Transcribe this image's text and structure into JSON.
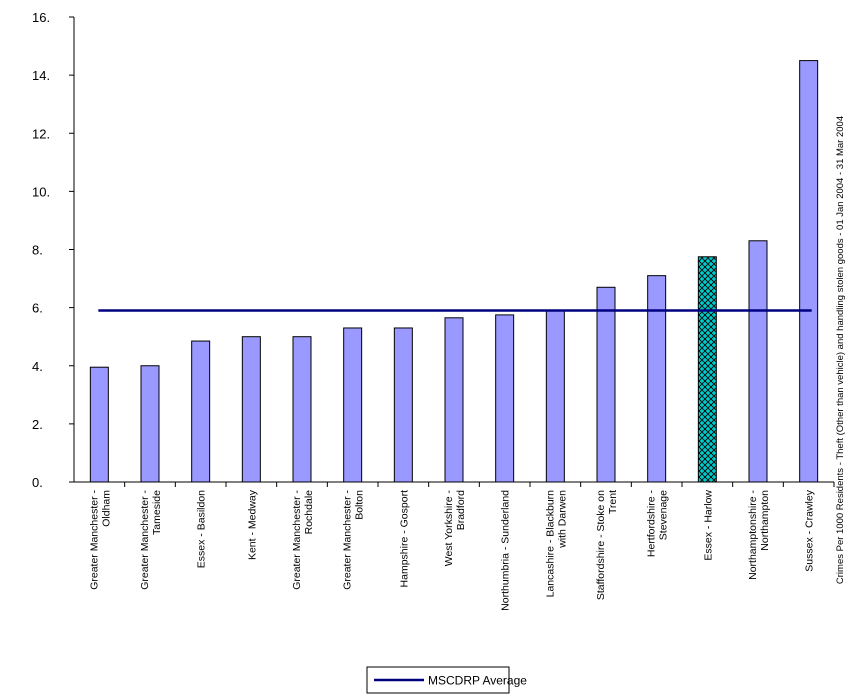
{
  "chart_data": {
    "type": "bar",
    "categories": [
      [
        "Greater Manchester -",
        "Oldham"
      ],
      [
        "Greater Manchester -",
        "Tameside"
      ],
      [
        "Essex - Basildon"
      ],
      [
        "Kent - Medway"
      ],
      [
        "Greater Manchester -",
        "Rochdale"
      ],
      [
        "Greater Manchester -",
        "Bolton"
      ],
      [
        "Hampshire - Gosport"
      ],
      [
        "West Yorkshire -",
        "Bradford"
      ],
      [
        "Northumbria - Sunderland"
      ],
      [
        "Lancashire - Blackburn",
        "with Darwen"
      ],
      [
        "Staffordshire - Stoke on",
        "Trent"
      ],
      [
        "Hertfordshire -",
        "Stevenage"
      ],
      [
        "Essex - Harlow"
      ],
      [
        "Northamptonshire -",
        "Northampton"
      ],
      [
        "Sussex - Crawley"
      ]
    ],
    "values": [
      3.95,
      4.0,
      4.85,
      5.0,
      5.0,
      5.3,
      5.3,
      5.65,
      5.75,
      5.9,
      6.7,
      7.1,
      7.75,
      8.3,
      14.5
    ],
    "highlight_index": 12,
    "average": {
      "name": "MSCDRP Average",
      "value": 5.9
    },
    "ylim": [
      0,
      16
    ],
    "yticks": [
      "0.",
      "2.",
      "4.",
      "6.",
      "8.",
      "10.",
      "12.",
      "14.",
      "16."
    ],
    "ylabel": "Crimes Per 1000 Residents - Theft (Other than vehicle) and handling stolen goods - 01 Jan 2004 - 31 Mar 2004",
    "legend_placement": "bottom",
    "grid": false,
    "colors": {
      "bar_fill": "#9999ff",
      "highlight_fill": "#00cccc",
      "average_line": "#000080",
      "axis": "#000000"
    }
  }
}
